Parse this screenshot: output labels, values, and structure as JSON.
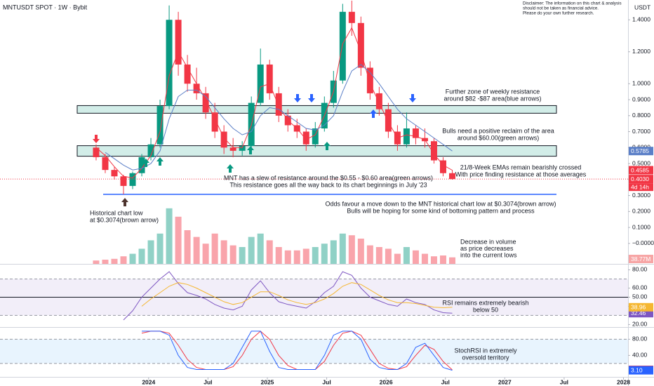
{
  "chart_data": [
    {
      "type": "candlestick",
      "title": "MNTUSDT SPOT · 1W · Bybit",
      "unit": "USDT",
      "disclaimer": [
        "Disclaimer: The information on this chart & analysis",
        "should not be taken as financial advice.",
        "Please do your own further research."
      ],
      "x": [
        -23,
        -19,
        -15,
        -11,
        -7,
        -3,
        1,
        5,
        9,
        13,
        17,
        21,
        25,
        29,
        33,
        37,
        41,
        45,
        49,
        53,
        57,
        61,
        65,
        69,
        73,
        77,
        81,
        85,
        89,
        93,
        97,
        101,
        105,
        109,
        113,
        117,
        121,
        125,
        129,
        133
      ],
      "open": [
        0.6,
        0.54,
        0.46,
        0.42,
        0.36,
        0.44,
        0.54,
        0.62,
        0.86,
        1.4,
        1.12,
        1.0,
        0.94,
        0.82,
        0.7,
        0.6,
        0.58,
        0.61,
        0.88,
        1.12,
        0.94,
        0.8,
        0.74,
        0.7,
        0.62,
        0.72,
        0.88,
        1.02,
        1.45,
        1.38,
        1.1,
        0.94,
        0.84,
        0.7,
        0.62,
        0.72,
        0.66,
        0.64,
        0.52,
        0.44
      ],
      "high": [
        0.62,
        0.56,
        0.48,
        0.43,
        0.45,
        0.56,
        0.66,
        0.9,
        1.49,
        1.45,
        1.18,
        1.1,
        0.98,
        0.88,
        0.74,
        0.66,
        0.64,
        0.92,
        1.22,
        1.15,
        0.98,
        0.84,
        0.78,
        0.72,
        0.76,
        0.92,
        1.08,
        1.5,
        1.52,
        1.42,
        1.14,
        0.98,
        0.88,
        0.74,
        0.82,
        0.74,
        0.72,
        0.66,
        0.54,
        0.46
      ],
      "low": [
        0.52,
        0.44,
        0.4,
        0.3074,
        0.34,
        0.42,
        0.52,
        0.6,
        0.84,
        1.05,
        0.95,
        0.9,
        0.78,
        0.66,
        0.56,
        0.54,
        0.55,
        0.6,
        0.86,
        0.9,
        0.76,
        0.7,
        0.66,
        0.58,
        0.6,
        0.7,
        0.85,
        1.0,
        1.3,
        1.05,
        0.9,
        0.8,
        0.66,
        0.58,
        0.6,
        0.62,
        0.6,
        0.5,
        0.42,
        0.4
      ],
      "close": [
        0.54,
        0.46,
        0.42,
        0.36,
        0.44,
        0.54,
        0.62,
        0.86,
        1.4,
        1.12,
        1.0,
        0.94,
        0.82,
        0.7,
        0.6,
        0.58,
        0.61,
        0.88,
        1.12,
        0.94,
        0.8,
        0.74,
        0.7,
        0.62,
        0.72,
        0.88,
        1.02,
        1.45,
        1.38,
        1.1,
        0.94,
        0.84,
        0.7,
        0.62,
        0.72,
        0.66,
        0.64,
        0.52,
        0.44,
        0.403
      ],
      "up_color": "#089981",
      "down_color": "#f23645",
      "series": [
        {
          "color": "#f23645",
          "values": [
            0.6,
            0.55,
            0.48,
            0.42,
            0.41,
            0.47,
            0.55,
            0.7,
            1.05,
            1.2,
            1.1,
            1.0,
            0.9,
            0.78,
            0.66,
            0.6,
            0.6,
            0.74,
            0.98,
            1.0,
            0.86,
            0.77,
            0.72,
            0.65,
            0.68,
            0.8,
            0.95,
            1.25,
            1.35,
            1.2,
            1.0,
            0.88,
            0.76,
            0.66,
            0.68,
            0.67,
            0.65,
            0.56,
            0.49,
            0.4585
          ]
        },
        {
          "color": "#5b7fc7",
          "values": [
            null,
            0.57,
            0.53,
            0.49,
            0.46,
            0.47,
            0.5,
            0.58,
            0.78,
            0.92,
            0.96,
            0.96,
            0.92,
            0.85,
            0.78,
            0.72,
            0.68,
            0.7,
            0.8,
            0.85,
            0.84,
            0.8,
            0.76,
            0.72,
            0.71,
            0.74,
            0.8,
            0.95,
            1.08,
            1.12,
            1.07,
            1.0,
            0.92,
            0.84,
            0.78,
            0.74,
            0.7,
            0.66,
            0.62,
            0.5785
          ]
        }
      ],
      "last_price": {
        "value": 0.403,
        "label": "0.4030"
      },
      "countdown": "4d 14h",
      "zones": [
        {
          "from": 0.546,
          "to": 0.612
        },
        {
          "from": 0.815,
          "to": 0.863
        }
      ],
      "support_line": 0.3074,
      "ylim": [
        -0.128,
        1.524
      ],
      "yticks": [
        {
          "value": 1.4,
          "label": "1.4000"
        },
        {
          "value": 1.2,
          "label": "1.2000"
        },
        {
          "value": 1.0,
          "label": "1.0000"
        },
        {
          "value": 0.9,
          "label": "0.9000"
        },
        {
          "value": 0.8,
          "label": "0.8000"
        },
        {
          "value": 0.7,
          "label": "0.7000"
        },
        {
          "value": 0.6,
          "label": "0.6000"
        },
        {
          "value": 0.5,
          "label": "0.5000"
        },
        {
          "value": 0.4,
          "label": "0.4000"
        },
        {
          "value": 0.3,
          "label": "0.3000"
        },
        {
          "value": 0.2,
          "label": "0.2000"
        },
        {
          "value": 0.1,
          "label": "0.1000"
        },
        {
          "value": 0,
          "label": "−0.0000"
        }
      ],
      "annotations": [
        [
          "Further zone of weekly resistance",
          "around $82 -$87 area(blue arrows)"
        ],
        [
          "Bulls need a positive reclaim of the area",
          "around $60.00(green arrows)"
        ],
        [
          "21/8-Week EMAs remain bearishly crossed",
          "With price finding resistance at those averages"
        ],
        [
          "MNT has a slew of resistance around the $0.55 - $0.60 area(green arrows)",
          "This resistance goes all the way back to its chart beginnings in July '23"
        ],
        [
          "Historical chart low",
          "at $0.3074(brown arrow)"
        ],
        [
          "Odds favour a move down to the MNT historical chart low at $0.3074(brown arrow)",
          "Bulls will be hoping for some kind of bottoming pattern and process"
        ]
      ]
    },
    {
      "type": "bar",
      "values": [
        20,
        25,
        30,
        45,
        60,
        90,
        140,
        180,
        330,
        280,
        200,
        160,
        120,
        180,
        140,
        110,
        100,
        160,
        180,
        140,
        100,
        80,
        80,
        90,
        100,
        120,
        140,
        180,
        170,
        150,
        110,
        100,
        90,
        60,
        100,
        80,
        60,
        45,
        50,
        38.77
      ],
      "last_label": "38.77M",
      "ylim": [
        0,
        400
      ],
      "annotation": [
        "Decrease in volume",
        "as price decreases",
        "into the current lows"
      ]
    },
    {
      "type": "line",
      "series": [
        {
          "color": "#7e57c2",
          "values": [
            null,
            null,
            null,
            25,
            35,
            50,
            60,
            70,
            78,
            65,
            55,
            52,
            48,
            42,
            38,
            36,
            40,
            58,
            68,
            55,
            45,
            42,
            40,
            38,
            45,
            55,
            62,
            78,
            74,
            60,
            50,
            46,
            42,
            40,
            48,
            44,
            42,
            36,
            33,
            32.46
          ]
        },
        {
          "color": "#f5b731",
          "values": [
            null,
            null,
            null,
            null,
            null,
            40,
            48,
            55,
            62,
            66,
            64,
            60,
            55,
            50,
            45,
            42,
            44,
            50,
            56,
            56,
            52,
            47,
            44,
            42,
            44,
            48,
            54,
            62,
            66,
            64,
            58,
            52,
            47,
            44,
            44,
            43,
            41,
            39,
            38.5,
            38.96
          ]
        }
      ],
      "band": [
        30,
        70
      ],
      "midline": 50,
      "ylim": [
        18,
        85
      ],
      "yticks": [
        {
          "value": 80,
          "label": "80.00"
        },
        {
          "value": 60,
          "label": "60.00"
        },
        {
          "value": 50,
          "label": "50.00"
        },
        {
          "value": 40,
          "label": "40.00"
        },
        {
          "value": 20,
          "label": "20.00"
        }
      ],
      "annotation": [
        "RSI remains extremely bearish",
        "below 50"
      ]
    },
    {
      "type": "line",
      "series": [
        {
          "color": "#f23645",
          "values": [
            null,
            null,
            null,
            null,
            null,
            95,
            100,
            100,
            95,
            65,
            30,
            10,
            5,
            5,
            5,
            12,
            40,
            80,
            100,
            80,
            40,
            15,
            5,
            5,
            5,
            25,
            65,
            95,
            100,
            90,
            55,
            20,
            8,
            5,
            12,
            40,
            65,
            55,
            25,
            4.16
          ],
          "last_label": "4.16"
        },
        {
          "color": "#2962ff",
          "values": [
            null,
            null,
            null,
            null,
            null,
            100,
            100,
            100,
            90,
            40,
            10,
            5,
            5,
            5,
            5,
            20,
            60,
            100,
            100,
            50,
            10,
            5,
            5,
            5,
            5,
            40,
            90,
            100,
            100,
            80,
            30,
            10,
            5,
            5,
            20,
            60,
            70,
            40,
            10,
            3.1
          ],
          "last_label": "3.10"
        }
      ],
      "band": [
        20,
        80
      ],
      "ylim": [
        -15,
        105
      ],
      "yticks": [
        {
          "value": 80,
          "label": "80.00"
        },
        {
          "value": 40,
          "label": "40.00"
        }
      ],
      "xlim": [
        -65.1,
        210
      ],
      "xticks": [
        {
          "value": 0,
          "label": "2024"
        },
        {
          "value": 26,
          "label": "Jul"
        },
        {
          "value": 52,
          "label": "2025"
        },
        {
          "value": 78,
          "label": "Jul"
        },
        {
          "value": 104,
          "label": "2026"
        },
        {
          "value": 130,
          "label": "Jul"
        },
        {
          "value": 156,
          "label": "2027"
        },
        {
          "value": 182,
          "label": "Jul"
        },
        {
          "value": 208,
          "label": "2028"
        }
      ],
      "annotation": [
        "StochRSI in extremely",
        "oversold territory"
      ]
    }
  ]
}
